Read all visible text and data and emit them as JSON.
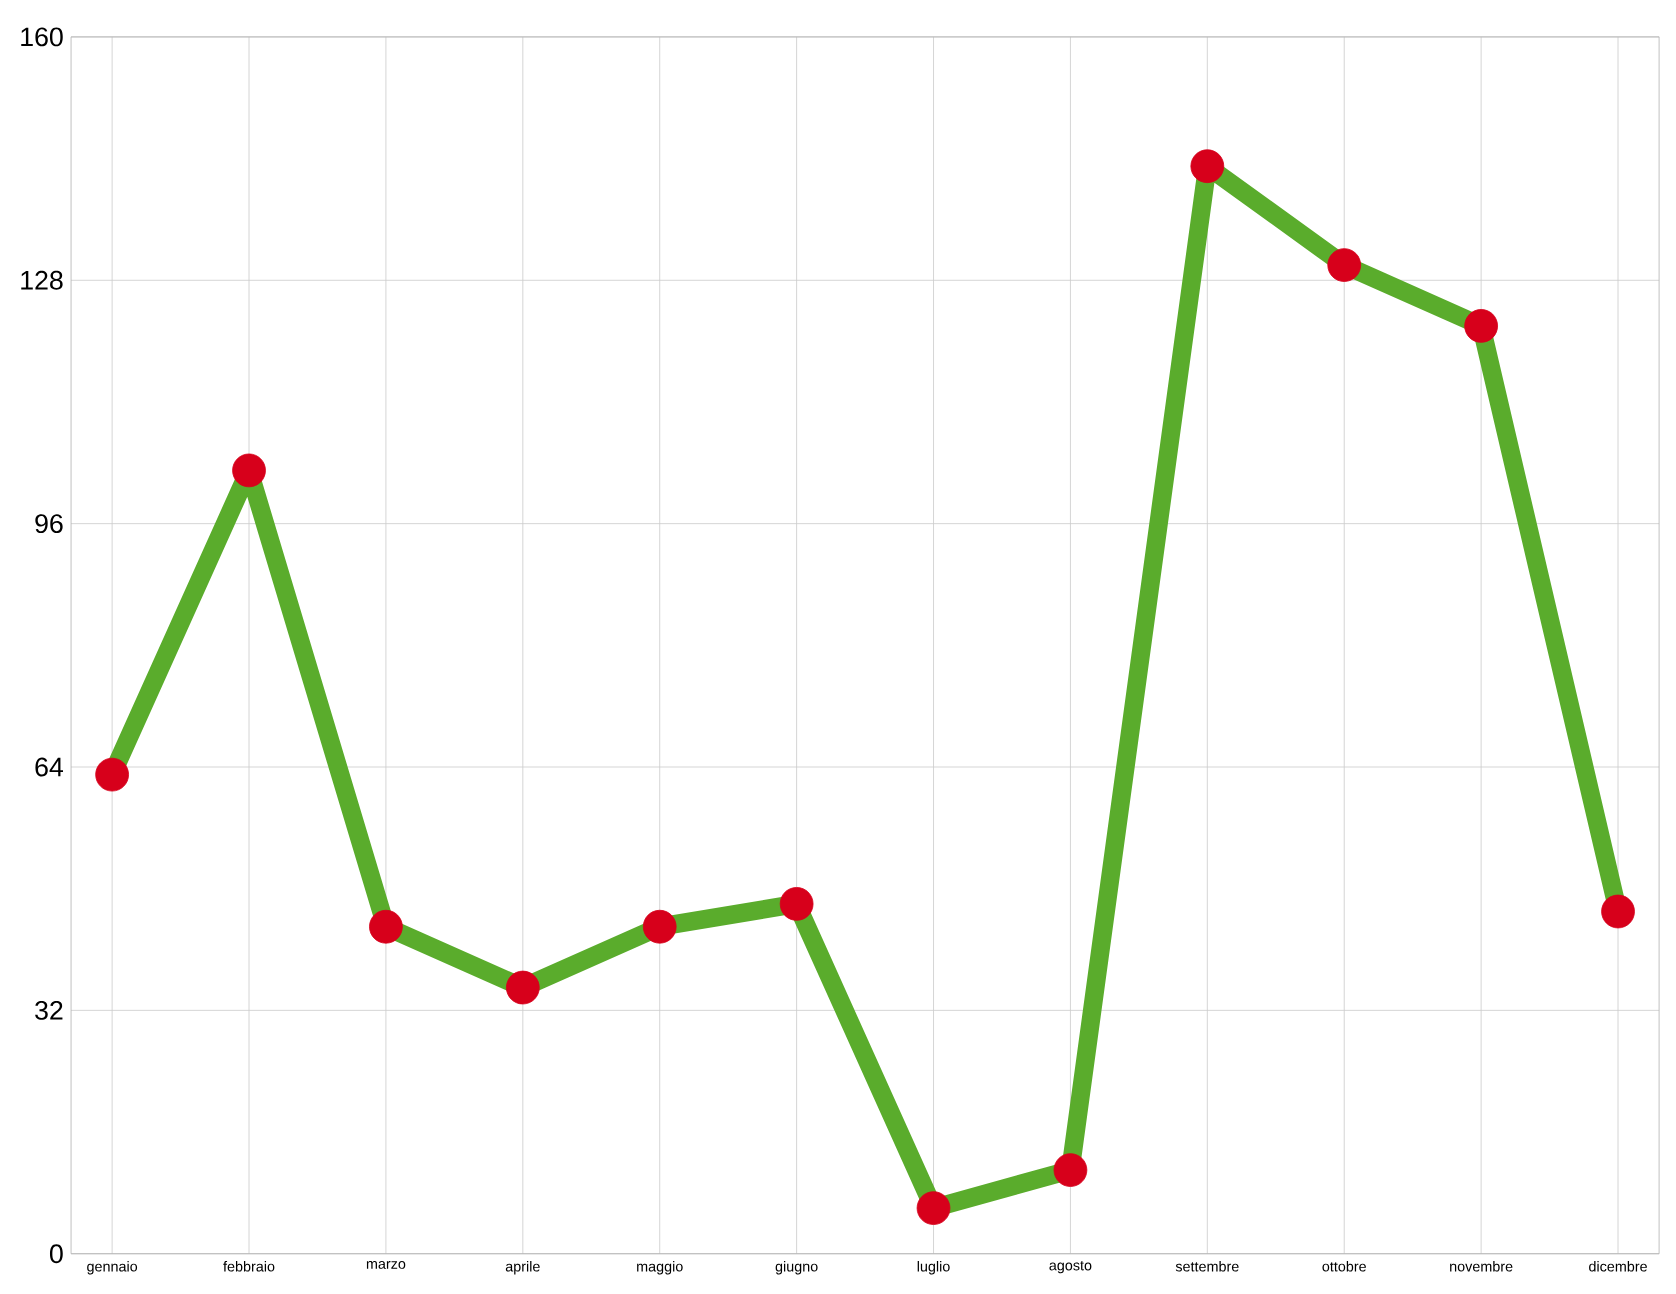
{
  "chart_data": {
    "type": "line",
    "categories": [
      "gennaio",
      "febbraio",
      "marzo",
      "aprile",
      "maggio",
      "giugno",
      "luglio",
      "agosto",
      "settembre",
      "ottobre",
      "novembre",
      "dicembre"
    ],
    "series": [
      {
        "color": "#5aac2c",
        "colors": [
          "#d7001b",
          "#d7001b",
          "#d7001b",
          "#d7001b",
          "#d7001b",
          "#d7001b",
          "#d7001b",
          "#d7001b",
          "#d7001b",
          "#d7001b",
          "#d7001b",
          "#d7001b"
        ],
        "values": [
          63,
          103,
          43,
          35,
          43,
          46,
          6,
          11,
          143,
          130,
          122,
          45
        ]
      }
    ],
    "ylim": [
      0,
      160
    ],
    "yticks": [
      0,
      32,
      64,
      96,
      128,
      160
    ],
    "grid": true,
    "marker": "circle",
    "line_style": "solid"
  }
}
